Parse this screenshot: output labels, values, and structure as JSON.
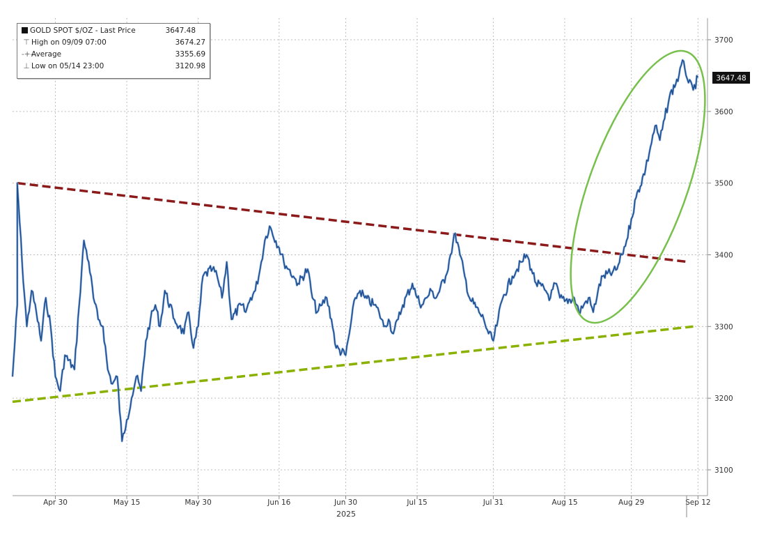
{
  "legend": {
    "series_name": "GOLD SPOT $/OZ - Last Price",
    "last_value": "3647.48",
    "high_label": "High on 09/09 07:00",
    "high_value": "3674.27",
    "avg_label": "Average",
    "avg_value": "3355.69",
    "low_label": "Low on 05/14 23:00",
    "low_value": "3120.98"
  },
  "last_price_tag": "3647.48",
  "colors": {
    "price_line": "#1f4e8f",
    "price_highlight": "#8fb3e0",
    "resistance": "#8b1a1a",
    "support": "#8ab000",
    "ellipse": "#77c04b",
    "grid": "#bdbdbd"
  },
  "chart_data": {
    "type": "line",
    "title": "",
    "xlabel": "2025",
    "ylabel": "",
    "x_tick_labels": [
      "Apr 30",
      "May 15",
      "May 30",
      "Jun 16",
      "Jun 30",
      "Jul 15",
      "Jul 31",
      "Aug 15",
      "Aug 29",
      "Sep 12"
    ],
    "y_tick_labels": [
      "3100",
      "3200",
      "3300",
      "3400",
      "3500",
      "3600",
      "3700"
    ],
    "ylim": [
      3060,
      3730
    ],
    "grid": true,
    "legend_position": "top-left",
    "series": [
      {
        "name": "GOLD SPOT $/OZ",
        "points": [
          [
            "Apr 21",
            3230
          ],
          [
            "Apr 22",
            3330
          ],
          [
            "Apr 22",
            3500
          ],
          [
            "Apr 23",
            3390
          ],
          [
            "Apr 24",
            3300
          ],
          [
            "Apr 25",
            3350
          ],
          [
            "Apr 26",
            3320
          ],
          [
            "Apr 27",
            3280
          ],
          [
            "Apr 28",
            3340
          ],
          [
            "Apr 29",
            3300
          ],
          [
            "Apr 30",
            3230
          ],
          [
            "May 1",
            3210
          ],
          [
            "May 2",
            3260
          ],
          [
            "May 4",
            3240
          ],
          [
            "May 5",
            3330
          ],
          [
            "May 6",
            3420
          ],
          [
            "May 7",
            3390
          ],
          [
            "May 8",
            3340
          ],
          [
            "May 9",
            3310
          ],
          [
            "May 10",
            3300
          ],
          [
            "May 11",
            3240
          ],
          [
            "May 12",
            3220
          ],
          [
            "May 13",
            3230
          ],
          [
            "May 14",
            3140
          ],
          [
            "May 15",
            3170
          ],
          [
            "May 16",
            3200
          ],
          [
            "May 17",
            3230
          ],
          [
            "May 18",
            3210
          ],
          [
            "May 19",
            3280
          ],
          [
            "May 20",
            3310
          ],
          [
            "May 21",
            3330
          ],
          [
            "May 22",
            3300
          ],
          [
            "May 23",
            3350
          ],
          [
            "May 25",
            3310
          ],
          [
            "May 26",
            3300
          ],
          [
            "May 27",
            3290
          ],
          [
            "May 28",
            3320
          ],
          [
            "May 29",
            3270
          ],
          [
            "May 30",
            3300
          ],
          [
            "May 31",
            3370
          ],
          [
            "Jun 2",
            3380
          ],
          [
            "Jun 3",
            3370
          ],
          [
            "Jun 4",
            3340
          ],
          [
            "Jun 5",
            3390
          ],
          [
            "Jun 6",
            3310
          ],
          [
            "Jun 8",
            3330
          ],
          [
            "Jun 9",
            3320
          ],
          [
            "Jun 10",
            3340
          ],
          [
            "Jun 11",
            3350
          ],
          [
            "Jun 12",
            3380
          ],
          [
            "Jun 13",
            3420
          ],
          [
            "Jun 14",
            3440
          ],
          [
            "Jun 16",
            3410
          ],
          [
            "Jun 17",
            3390
          ],
          [
            "Jun 18",
            3380
          ],
          [
            "Jun 19",
            3370
          ],
          [
            "Jun 20",
            3360
          ],
          [
            "Jun 22",
            3380
          ],
          [
            "Jun 23",
            3340
          ],
          [
            "Jun 24",
            3320
          ],
          [
            "Jun 25",
            3330
          ],
          [
            "Jun 26",
            3340
          ],
          [
            "Jun 27",
            3310
          ],
          [
            "Jun 28",
            3270
          ],
          [
            "Jun 30",
            3260
          ],
          [
            "Jul 1",
            3300
          ],
          [
            "Jul 2",
            3340
          ],
          [
            "Jul 3",
            3350
          ],
          [
            "Jul 4",
            3340
          ],
          [
            "Jul 6",
            3330
          ],
          [
            "Jul 7",
            3320
          ],
          [
            "Jul 8",
            3300
          ],
          [
            "Jul 9",
            3310
          ],
          [
            "Jul 10",
            3290
          ],
          [
            "Jul 11",
            3310
          ],
          [
            "Jul 12",
            3330
          ],
          [
            "Jul 14",
            3360
          ],
          [
            "Jul 15",
            3340
          ],
          [
            "Jul 16",
            3330
          ],
          [
            "Jul 17",
            3340
          ],
          [
            "Jul 18",
            3350
          ],
          [
            "Jul 19",
            3340
          ],
          [
            "Jul 21",
            3370
          ],
          [
            "Jul 22",
            3400
          ],
          [
            "Jul 23",
            3430
          ],
          [
            "Jul 24",
            3400
          ],
          [
            "Jul 25",
            3370
          ],
          [
            "Jul 26",
            3340
          ],
          [
            "Jul 28",
            3320
          ],
          [
            "Jul 29",
            3310
          ],
          [
            "Jul 30",
            3290
          ],
          [
            "Jul 31",
            3280
          ],
          [
            "Aug 1",
            3310
          ],
          [
            "Aug 2",
            3340
          ],
          [
            "Aug 4",
            3370
          ],
          [
            "Aug 5",
            3380
          ],
          [
            "Aug 6",
            3390
          ],
          [
            "Aug 7",
            3400
          ],
          [
            "Aug 8",
            3380
          ],
          [
            "Aug 9",
            3360
          ],
          [
            "Aug 11",
            3350
          ],
          [
            "Aug 12",
            3340
          ],
          [
            "Aug 13",
            3360
          ],
          [
            "Aug 14",
            3340
          ],
          [
            "Aug 15",
            3335
          ],
          [
            "Aug 17",
            3340
          ],
          [
            "Aug 18",
            3320
          ],
          [
            "Aug 19",
            3330
          ],
          [
            "Aug 20",
            3340
          ],
          [
            "Aug 21",
            3320
          ],
          [
            "Aug 22",
            3350
          ],
          [
            "Aug 23",
            3370
          ],
          [
            "Aug 25",
            3375
          ],
          [
            "Aug 26",
            3380
          ],
          [
            "Aug 27",
            3400
          ],
          [
            "Aug 28",
            3420
          ],
          [
            "Aug 29",
            3450
          ],
          [
            "Aug 30",
            3480
          ],
          [
            "Sep 1",
            3520
          ],
          [
            "Sep 2",
            3550
          ],
          [
            "Sep 3",
            3580
          ],
          [
            "Sep 4",
            3560
          ],
          [
            "Sep 5",
            3590
          ],
          [
            "Sep 6",
            3620
          ],
          [
            "Sep 8",
            3650
          ],
          [
            "Sep 9",
            3670
          ],
          [
            "Sep 10",
            3640
          ],
          [
            "Sep 11",
            3630
          ],
          [
            "Sep 12",
            3647.48
          ]
        ]
      }
    ],
    "annotations": [
      {
        "type": "trendline",
        "name": "resistance",
        "style": "dashed",
        "from": [
          "Apr 22",
          3500
        ],
        "to": [
          "Sep 10",
          3390
        ]
      },
      {
        "type": "trendline",
        "name": "support",
        "style": "dashed",
        "from": [
          "Apr 21",
          3195
        ],
        "to": [
          "Sep 11",
          3300
        ]
      },
      {
        "type": "ellipse",
        "name": "breakout-highlight",
        "around": "Aug 22 – Sep 12"
      }
    ]
  }
}
